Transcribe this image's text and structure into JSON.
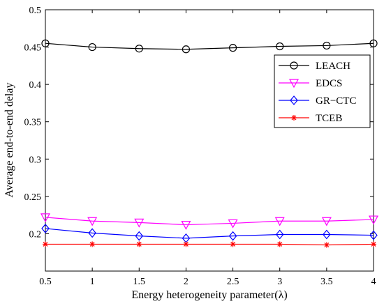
{
  "chart_data": {
    "type": "line",
    "title": "",
    "xlabel": "Energy heterogeneity parameter(λ)",
    "ylabel": "Average end-to-end delay",
    "xlim": [
      0.5,
      4
    ],
    "ylim": [
      0.15,
      0.5
    ],
    "x_ticks": [
      "0.5",
      "1",
      "1.5",
      "2",
      "2.5",
      "3",
      "3.5",
      "4"
    ],
    "y_ticks": [
      "0.2",
      "0.25",
      "0.3",
      "0.35",
      "0.4",
      "0.45",
      "0.5"
    ],
    "grid": false,
    "legend_position": "top-right",
    "x": [
      0.5,
      1,
      1.5,
      2,
      2.5,
      3,
      3.5,
      4
    ],
    "series": [
      {
        "name": "LEACH",
        "color": "#000000",
        "marker": "circle",
        "values": [
          0.455,
          0.45,
          0.448,
          0.447,
          0.449,
          0.451,
          0.452,
          0.455
        ]
      },
      {
        "name": "EDCS",
        "color": "#ff00ff",
        "marker": "triangle-down",
        "values": [
          0.222,
          0.217,
          0.215,
          0.212,
          0.214,
          0.217,
          0.217,
          0.219
        ]
      },
      {
        "name": "GR−CTC",
        "color": "#0000ff",
        "marker": "diamond",
        "values": [
          0.207,
          0.201,
          0.197,
          0.194,
          0.197,
          0.199,
          0.199,
          0.198
        ]
      },
      {
        "name": "TCEB",
        "color": "#ff0000",
        "marker": "asterisk",
        "values": [
          0.186,
          0.186,
          0.186,
          0.186,
          0.186,
          0.186,
          0.185,
          0.186
        ]
      }
    ]
  }
}
